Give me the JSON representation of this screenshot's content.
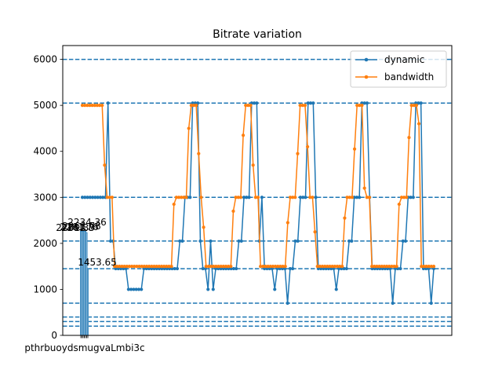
{
  "chart_data": {
    "type": "line",
    "title": "Bitrate variation",
    "xlabel": "",
    "ylabel": "",
    "ylim": [
      0,
      6300
    ],
    "yticks": [
      0,
      1000,
      2000,
      3000,
      4000,
      5000,
      6000
    ],
    "grid": false,
    "legend_position": "top-right",
    "reference_lines": [
      200,
      300,
      400,
      700,
      1450,
      2050,
      3000,
      5050,
      6000
    ],
    "bars": [
      {
        "category": "puffer",
        "value": 2261.83
      },
      {
        "category": "bola",
        "value": 2261.76
      },
      {
        "category": "throughput",
        "value": 2261.78
      },
      {
        "category": "dynamic",
        "value": 2261.8
      },
      {
        "category": "bba",
        "value": 2261.79
      },
      {
        "category": "pensieve",
        "value": 2234.36
      },
      {
        "category": "ibb",
        "value": 1453.65
      }
    ],
    "visible_bar_labels": [
      "2261.83",
      "2261.8",
      "2261.76",
      "2261.78",
      "2234.36",
      "1453.65"
    ],
    "tick_label_overlap_text": "pthrbuoydsmugvaLmbi3c",
    "series": [
      {
        "name": "dynamic",
        "color": "#1f77b4",
        "values": [
          3000,
          3000,
          3000,
          3000,
          3000,
          3000,
          3000,
          3000,
          3000,
          3000,
          5050,
          2050,
          2050,
          1450,
          1450,
          1450,
          1450,
          1450,
          1000,
          1000,
          1000,
          1000,
          1000,
          1000,
          1450,
          1450,
          1450,
          1450,
          1450,
          1450,
          1450,
          1450,
          1450,
          1450,
          1450,
          1450,
          1450,
          1450,
          2050,
          2050,
          3000,
          3000,
          3000,
          5050,
          5050,
          5050,
          2050,
          1450,
          1450,
          1000,
          2050,
          1000,
          1450,
          1450,
          1450,
          1450,
          1450,
          1450,
          1450,
          1450,
          1450,
          2050,
          2050,
          3000,
          3000,
          3000,
          5050,
          5050,
          5050,
          2050,
          3000,
          1450,
          1450,
          1450,
          1450,
          1000,
          1450,
          1450,
          1450,
          1450,
          700,
          1450,
          1450,
          2050,
          2050,
          3000,
          3000,
          3000,
          5050,
          5050,
          5050,
          3000,
          1450,
          1450,
          1450,
          1450,
          1450,
          1450,
          1450,
          1000,
          1450,
          1450,
          1450,
          1450,
          2050,
          2050,
          3000,
          3000,
          3000,
          5050,
          5050,
          5050,
          3000,
          1450,
          1450,
          1450,
          1450,
          1450,
          1450,
          1450,
          1450,
          700,
          1450,
          1450,
          1450,
          2050,
          2050,
          3000,
          3000,
          3000,
          5050,
          5050,
          5050,
          1450,
          1450,
          1450,
          700,
          1450
        ]
      },
      {
        "name": "bandwidth",
        "color": "#ff7f0e",
        "values": [
          5000,
          5000,
          5000,
          5000,
          5000,
          5000,
          5000,
          5000,
          5000,
          3700,
          3000,
          3000,
          3000,
          1500,
          1500,
          1500,
          1500,
          1500,
          1500,
          1500,
          1500,
          1500,
          1500,
          1500,
          1500,
          1500,
          1500,
          1500,
          1500,
          1500,
          1500,
          1500,
          1500,
          1500,
          1500,
          1500,
          1500,
          2850,
          3000,
          3000,
          3000,
          3000,
          3000,
          4500,
          5000,
          5000,
          5000,
          3950,
          3000,
          2350,
          1500,
          1500,
          1500,
          1500,
          1500,
          1500,
          1500,
          1500,
          1500,
          1500,
          1500,
          2700,
          3000,
          3000,
          3000,
          4350,
          5000,
          5000,
          5000,
          3700,
          3000,
          3000,
          1500,
          1500,
          1500,
          1500,
          1500,
          1500,
          1500,
          1500,
          1500,
          1500,
          1500,
          2450,
          3000,
          3000,
          3000,
          3950,
          5000,
          5000,
          5000,
          4100,
          3000,
          3000,
          2250,
          1500,
          1500,
          1500,
          1500,
          1500,
          1500,
          1500,
          1500,
          1500,
          1500,
          1500,
          2550,
          3000,
          3000,
          3000,
          4050,
          5000,
          5000,
          5000,
          3200,
          3000,
          3000,
          1500,
          1500,
          1500,
          1500,
          1500,
          1500,
          1500,
          1500,
          1500,
          1500,
          1500,
          2850,
          3000,
          3000,
          3000,
          4300,
          5000,
          5000,
          5000,
          4600,
          1500,
          1500,
          1500,
          1500,
          1500,
          1500
        ]
      }
    ]
  }
}
